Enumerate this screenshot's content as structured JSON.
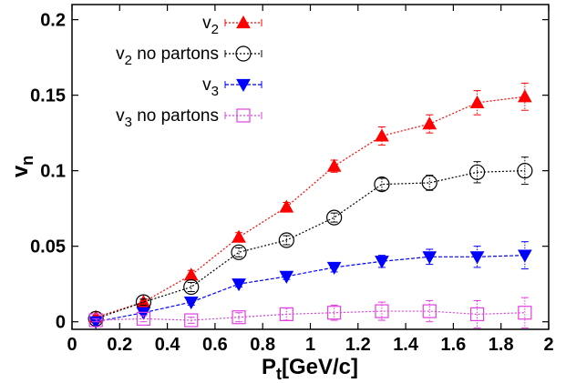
{
  "chart_data": {
    "type": "line",
    "title": "",
    "xlabel": {
      "base": "P",
      "sub": "t",
      "rest": "[GeV/c]"
    },
    "ylabel": {
      "base": "v",
      "sub": "n"
    },
    "xlim": [
      0,
      2
    ],
    "ylim": [
      -0.005,
      0.21
    ],
    "xticks": [
      0,
      0.2,
      0.4,
      0.6,
      0.8,
      1,
      1.2,
      1.4,
      1.6,
      1.8,
      2
    ],
    "xtick_labels": [
      "0",
      "0.2",
      "0.4",
      "0.6",
      "0.8",
      "1",
      "1.2",
      "1.4",
      "1.6",
      "1.8",
      "2"
    ],
    "yticks": [
      0,
      0.05,
      0.1,
      0.15,
      0.2
    ],
    "ytick_labels": [
      "0",
      "0.05",
      "0.1",
      "0.15",
      "0.2"
    ],
    "grid": false,
    "legend_position": "top-right",
    "series": [
      {
        "name": {
          "base": "v",
          "sub": "2",
          "rest": ""
        },
        "color": "#ff0000",
        "marker": "triangle-up-filled",
        "line_style": "dotted",
        "x": [
          0.1,
          0.3,
          0.5,
          0.7,
          0.9,
          1.1,
          1.3,
          1.5,
          1.7,
          1.9
        ],
        "y": [
          0.003,
          0.013,
          0.031,
          0.056,
          0.076,
          0.103,
          0.123,
          0.131,
          0.145,
          0.149
        ],
        "err": [
          0.001,
          0.002,
          0.003,
          0.003,
          0.003,
          0.004,
          0.006,
          0.006,
          0.008,
          0.009
        ]
      },
      {
        "name": {
          "base": "v",
          "sub": "2",
          "rest": " no partons"
        },
        "color": "#000000",
        "marker": "circle-open",
        "line_style": "dotted",
        "x": [
          0.1,
          0.3,
          0.5,
          0.7,
          0.9,
          1.1,
          1.3,
          1.5,
          1.7,
          1.9
        ],
        "y": [
          0.002,
          0.013,
          0.023,
          0.046,
          0.054,
          0.069,
          0.091,
          0.092,
          0.099,
          0.1
        ],
        "err": [
          0.001,
          0.002,
          0.003,
          0.003,
          0.003,
          0.003,
          0.004,
          0.005,
          0.007,
          0.009
        ]
      },
      {
        "name": {
          "base": "v",
          "sub": "3",
          "rest": ""
        },
        "color": "#0000ff",
        "marker": "triangle-down-filled",
        "line_style": "dashed",
        "x": [
          0.1,
          0.3,
          0.5,
          0.7,
          0.9,
          1.1,
          1.3,
          1.5,
          1.7,
          1.9
        ],
        "y": [
          0.0,
          0.006,
          0.013,
          0.025,
          0.03,
          0.036,
          0.04,
          0.043,
          0.043,
          0.044
        ],
        "err": [
          0.001,
          0.001,
          0.002,
          0.002,
          0.002,
          0.003,
          0.004,
          0.005,
          0.007,
          0.009
        ]
      },
      {
        "name": {
          "base": "v",
          "sub": "3",
          "rest": " no partons"
        },
        "color": "#e040e0",
        "marker": "square-open",
        "line_style": "dotted",
        "x": [
          0.1,
          0.3,
          0.5,
          0.7,
          0.9,
          1.1,
          1.3,
          1.5,
          1.7,
          1.9
        ],
        "y": [
          0.001,
          0.002,
          0.001,
          0.003,
          0.005,
          0.006,
          0.007,
          0.007,
          0.005,
          0.006
        ],
        "err": [
          0.001,
          0.002,
          0.002,
          0.003,
          0.004,
          0.005,
          0.006,
          0.007,
          0.009,
          0.01
        ]
      }
    ]
  }
}
